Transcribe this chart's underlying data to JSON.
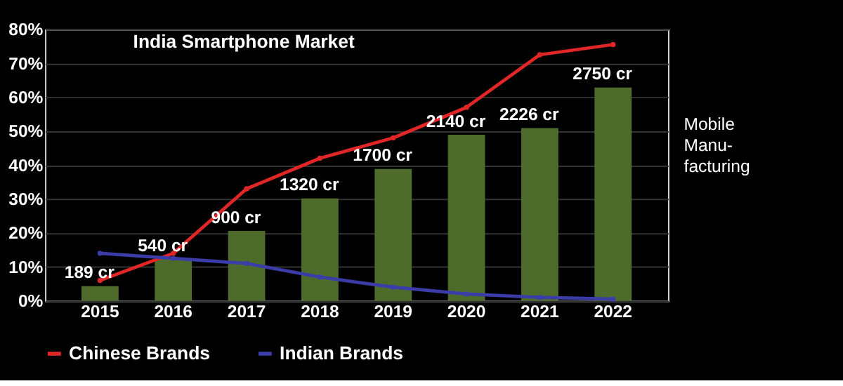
{
  "chart_data": {
    "type": "line",
    "title": "India Smartphone Market",
    "categories": [
      "2015",
      "2016",
      "2017",
      "2018",
      "2019",
      "2020",
      "2021",
      "2022"
    ],
    "series": [
      {
        "name": "Chinese Brands",
        "color": "#e02626",
        "values": [
          6,
          14,
          33,
          42,
          48,
          57,
          72.5,
          75.5
        ]
      },
      {
        "name": "Indian Brands",
        "color": "#3c3ca8",
        "values": [
          14,
          12.5,
          11,
          7,
          4,
          2,
          1,
          0.5
        ]
      },
      {
        "type": "bar",
        "axis": "y2",
        "color": "#4e6b2c",
        "values": [
          189,
          540,
          900,
          1320,
          1700,
          2140,
          2226,
          2750
        ],
        "value_labels": [
          "189 cr",
          "540 cr",
          "900 cr",
          "1320 cr",
          "1700 cr",
          "2140 cr",
          "2226 cr",
          "2750 cr"
        ]
      }
    ],
    "ylim": [
      0,
      80
    ],
    "yticks": [
      {
        "value": 0,
        "label": "0%"
      },
      {
        "value": 10,
        "label": "10%"
      },
      {
        "value": 20,
        "label": "20%"
      },
      {
        "value": 30,
        "label": "30%"
      },
      {
        "value": 40,
        "label": "40%"
      },
      {
        "value": 50,
        "label": "50%"
      },
      {
        "value": 60,
        "label": "60%"
      },
      {
        "value": 70,
        "label": "70%"
      },
      {
        "value": 80,
        "label": "80%"
      }
    ],
    "y2lim": [
      0,
      3500
    ],
    "grid": "y",
    "legend": "bottom",
    "marker": "circle",
    "line_style": "solid",
    "annotations": [
      "Mobile\nManu-\nfacturing"
    ]
  }
}
